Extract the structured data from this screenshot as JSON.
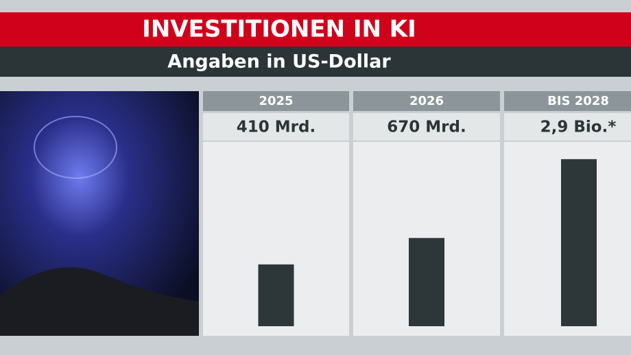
{
  "chart_data": {
    "type": "bar",
    "title": "INVESTITIONEN IN KI",
    "subtitle": "Angaben in US-Dollar",
    "categories": [
      "2025",
      "2026",
      "BIS 2028"
    ],
    "values": [
      410,
      670,
      2900
    ],
    "value_labels": [
      "410 Mrd.",
      "670 Mrd.",
      "2,9 Bio.*"
    ],
    "color": "#2d3739",
    "log_scale": true,
    "ylim": [
      130,
      4000
    ]
  }
}
